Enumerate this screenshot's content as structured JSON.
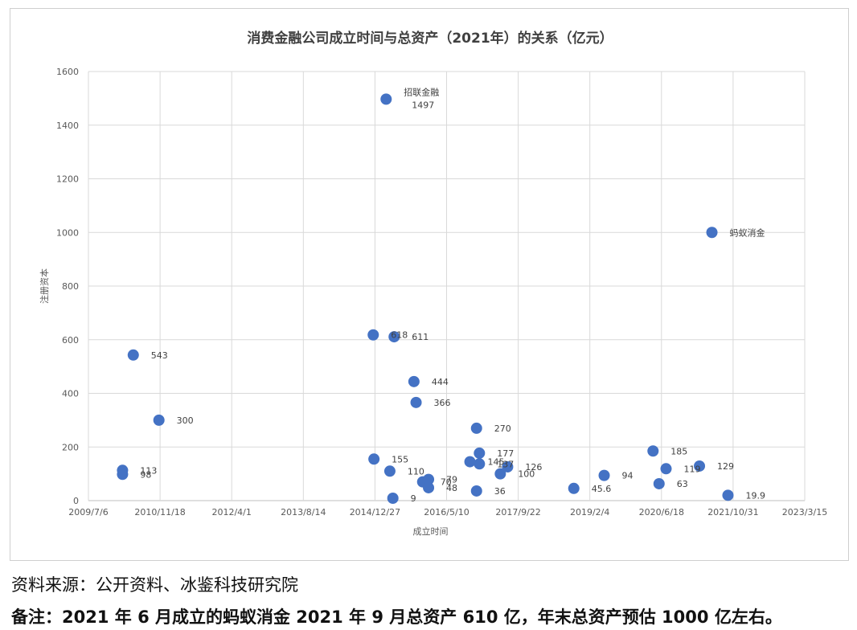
{
  "chart_data": {
    "type": "scatter",
    "title": "消费金融公司成立时间与总资产（2021年）的关系（亿元）",
    "xlabel": "成立时间",
    "ylabel": "注册资本",
    "x_axis": {
      "type": "date",
      "min": "2009/7/6",
      "max": "2023/3/15",
      "tick_labels": [
        "2009/7/6",
        "2010/11/18",
        "2012/4/1",
        "2013/8/14",
        "2014/12/27",
        "2016/5/10",
        "2017/9/22",
        "2019/2/4",
        "2020/6/18",
        "2021/10/31",
        "2023/3/15"
      ]
    },
    "ylim": [
      0,
      1600
    ],
    "y_ticks": [
      0,
      200,
      400,
      600,
      800,
      1000,
      1200,
      1400,
      1600
    ],
    "grid": true,
    "marker_color": "#4472C4",
    "points": [
      {
        "x": "2010/3/1",
        "y": 113,
        "label": "113"
      },
      {
        "x": "2010/3/1",
        "y": 98,
        "label": "98"
      },
      {
        "x": "2010/5/15",
        "y": 543,
        "label": "543"
      },
      {
        "x": "2010/11/10",
        "y": 300,
        "label": "300"
      },
      {
        "x": "2014/12/15",
        "y": 618,
        "label": "618"
      },
      {
        "x": "2014/12/20",
        "y": 155,
        "label": "155"
      },
      {
        "x": "2015/3/15",
        "y": 1497,
        "label": "招联金融\n1497"
      },
      {
        "x": "2015/4/10",
        "y": 110,
        "label": "110"
      },
      {
        "x": "2015/5/1",
        "y": 9,
        "label": "9"
      },
      {
        "x": "2015/5/10",
        "y": 611,
        "label": "611"
      },
      {
        "x": "2015/9/25",
        "y": 444,
        "label": "444"
      },
      {
        "x": "2015/10/10",
        "y": 366,
        "label": "366"
      },
      {
        "x": "2015/11/25",
        "y": 70,
        "label": "70"
      },
      {
        "x": "2016/1/5",
        "y": 79,
        "label": "79"
      },
      {
        "x": "2016/1/5",
        "y": 48,
        "label": "48"
      },
      {
        "x": "2016/10/20",
        "y": 145,
        "label": "145"
      },
      {
        "x": "2016/12/5",
        "y": 270,
        "label": "270"
      },
      {
        "x": "2016/12/5",
        "y": 36,
        "label": "36"
      },
      {
        "x": "2016/12/25",
        "y": 177,
        "label": "177"
      },
      {
        "x": "2016/12/25",
        "y": 137,
        "label": "137"
      },
      {
        "x": "2017/5/20",
        "y": 100,
        "label": "100"
      },
      {
        "x": "2017/7/10",
        "y": 126,
        "label": "126"
      },
      {
        "x": "2018/10/15",
        "y": 45.6,
        "label": "45.6"
      },
      {
        "x": "2019/5/15",
        "y": 94,
        "label": "94"
      },
      {
        "x": "2020/4/20",
        "y": 185,
        "label": "185"
      },
      {
        "x": "2020/6/1",
        "y": 63,
        "label": "63"
      },
      {
        "x": "2020/7/20",
        "y": 119,
        "label": "119"
      },
      {
        "x": "2021/3/10",
        "y": 129,
        "label": "129"
      },
      {
        "x": "2021/6/5",
        "y": 1000,
        "label": "蚂蚁消金"
      },
      {
        "x": "2021/9/25",
        "y": 19.9,
        "label": "19.9"
      }
    ]
  },
  "footer": {
    "source": "资料来源：公开资料、冰鉴科技研究院",
    "note": "备注：2021 年 6 月成立的蚂蚁消金 2021 年 9 月总资产 610 亿，年末总资产预估 1000 亿左右。"
  }
}
